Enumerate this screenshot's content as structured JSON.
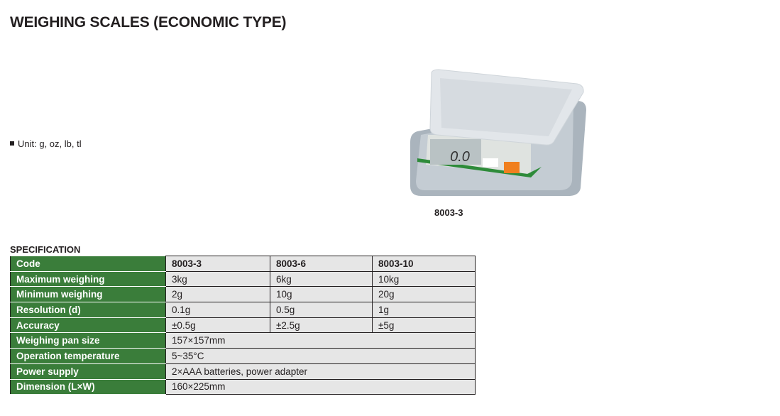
{
  "title": "WEIGHING SCALES (ECONOMIC TYPE)",
  "unit_text": "Unit: g, oz, lb, tl",
  "product_image": {
    "caption": "8003-3",
    "display": "0.0",
    "buttons": [
      "UNIT",
      "ON/OFF"
    ],
    "accent": "#f07f1e"
  },
  "spec_heading": "SPECIFICATION",
  "colors": {
    "label_bg": "#3a7d3a",
    "cell_bg": "#e6e6e6"
  },
  "table": {
    "header": {
      "label": "Code",
      "values": [
        "8003-3",
        "8003-6",
        "8003-10"
      ]
    },
    "rows": [
      {
        "label": "Maximum weighing",
        "values": [
          "3kg",
          "6kg",
          "10kg"
        ]
      },
      {
        "label": "Minimum weighing",
        "values": [
          "2g",
          "10g",
          "20g"
        ]
      },
      {
        "label": "Resolution (d)",
        "values": [
          "0.1g",
          "0.5g",
          "1g"
        ]
      },
      {
        "label": "Accuracy",
        "values": [
          "±0.5g",
          "±2.5g",
          "±5g"
        ]
      },
      {
        "label": "Weighing pan size",
        "value": "157×157mm"
      },
      {
        "label": "Operation temperature",
        "value": "5~35°C"
      },
      {
        "label": "Power supply",
        "value": "2×AAA batteries, power adapter"
      },
      {
        "label": "Dimension (L×W)",
        "value": "160×225mm"
      }
    ]
  }
}
